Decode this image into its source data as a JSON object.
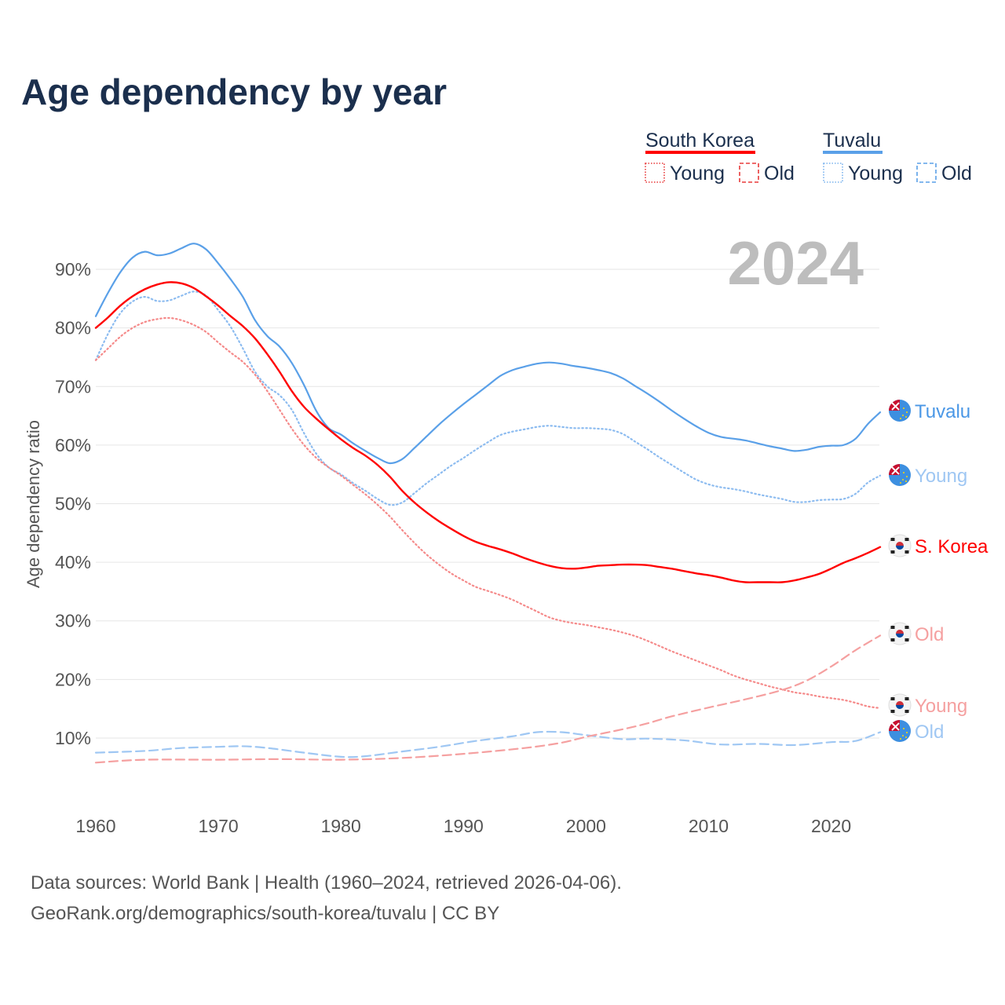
{
  "title": "Age dependency by year",
  "year_badge": "2024",
  "legend": {
    "groups": [
      {
        "name": "South Korea",
        "color": "#ff0000",
        "young": "Young",
        "old": "Old",
        "young_color": "#e83a3a",
        "old_color": "#e83a3a"
      },
      {
        "name": "Tuvalu",
        "color": "#5aa0e8",
        "young": "Young",
        "old": "Old",
        "young_color": "#7ab3ee",
        "old_color": "#5aa0e8"
      }
    ]
  },
  "end_labels": [
    {
      "text": "Tuvalu",
      "color": "#4a97e6",
      "flag": "tuvalu-flag",
      "value": 65.6
    },
    {
      "text": "Young",
      "color": "#9fc7f3",
      "flag": "tuvalu-flag",
      "value": 54.8
    },
    {
      "text": "S. Korea",
      "color": "#ff0000",
      "flag": "south-korea-flag",
      "value": 42.6
    },
    {
      "text": "Old",
      "color": "#f5a0a0",
      "flag": "south-korea-flag",
      "value": 27.5
    },
    {
      "text": "Young",
      "color": "#f5a0a0",
      "flag": "south-korea-flag",
      "value": 15.1
    },
    {
      "text": "Old",
      "color": "#9fc7f3",
      "flag": "tuvalu-flag",
      "value": 11
    }
  ],
  "source": {
    "line1": "Data sources: World Bank | Health (1960–2024, retrieved 2026-04-06).",
    "line2": "GeoRank.org/demographics/south-korea/tuvalu | CC BY"
  },
  "chart_data": {
    "type": "line",
    "title": "Age dependency by year",
    "xlabel": "",
    "ylabel": "Age dependency ratio",
    "xlim": [
      1960,
      2024
    ],
    "ylim": [
      0,
      100
    ],
    "x_ticks": [
      1960,
      1970,
      1980,
      1990,
      2000,
      2010,
      2020
    ],
    "x_tick_labels": [
      "1960",
      "1970",
      "1980",
      "1990",
      "2000",
      "2010",
      "2020"
    ],
    "y_ticks": [
      10,
      20,
      30,
      40,
      50,
      60,
      70,
      80,
      90
    ],
    "y_tick_labels": [
      "10%",
      "20%",
      "30%",
      "40%",
      "50%",
      "60%",
      "70%",
      "80%",
      "90%"
    ],
    "grid": true,
    "legend_position": "top-right",
    "series": [
      {
        "name": "Tuvalu",
        "color": "#5aa0e8",
        "dash": "solid",
        "width": 2.2,
        "x": [
          1960,
          1961,
          1962,
          1963,
          1964,
          1965,
          1966,
          1967,
          1968,
          1969,
          1970,
          1971,
          1972,
          1973,
          1974,
          1975,
          1976,
          1977,
          1978,
          1979,
          1980,
          1981,
          1982,
          1983,
          1984,
          1985,
          1986,
          1987,
          1988,
          1989,
          1990,
          1991,
          1992,
          1993,
          1994,
          1995,
          1996,
          1997,
          1998,
          1999,
          2000,
          2001,
          2002,
          2003,
          2004,
          2005,
          2006,
          2007,
          2008,
          2009,
          2010,
          2011,
          2012,
          2013,
          2014,
          2015,
          2016,
          2017,
          2018,
          2019,
          2020,
          2021,
          2022,
          2023,
          2024
        ],
        "y": [
          82,
          86,
          89.5,
          92,
          93,
          92.4,
          92.7,
          93.6,
          94.4,
          93.4,
          91,
          88.3,
          85.3,
          81.3,
          78.6,
          76.8,
          74,
          70.2,
          65.8,
          62.9,
          61.8,
          60.3,
          59,
          57.8,
          56.9,
          57.6,
          59.5,
          61.5,
          63.5,
          65.3,
          67,
          68.6,
          70.2,
          71.8,
          72.8,
          73.4,
          73.9,
          74.1,
          73.9,
          73.5,
          73.2,
          72.8,
          72.3,
          71.4,
          70.1,
          68.8,
          67.4,
          65.9,
          64.5,
          63.2,
          62.1,
          61.4,
          61.1,
          60.8,
          60.3,
          59.8,
          59.4,
          59,
          59.2,
          59.7,
          59.9,
          60,
          61.1,
          63.6,
          65.6
        ]
      },
      {
        "name": "Tuvalu Young",
        "color": "#8dbcf0",
        "dash": "dotted",
        "width": 2.2,
        "x": [
          1960,
          1961,
          1962,
          1963,
          1964,
          1965,
          1966,
          1967,
          1968,
          1969,
          1970,
          1971,
          1972,
          1973,
          1974,
          1975,
          1976,
          1977,
          1978,
          1979,
          1980,
          1981,
          1982,
          1983,
          1984,
          1985,
          1986,
          1987,
          1988,
          1989,
          1990,
          1991,
          1992,
          1993,
          1994,
          1995,
          1996,
          1997,
          1998,
          1999,
          2000,
          2001,
          2002,
          2003,
          2004,
          2005,
          2006,
          2007,
          2008,
          2009,
          2010,
          2011,
          2012,
          2013,
          2014,
          2015,
          2016,
          2017,
          2018,
          2019,
          2020,
          2021,
          2022,
          2023,
          2024
        ],
        "y": [
          74.5,
          79,
          82.5,
          84.5,
          85.3,
          84.6,
          84.7,
          85.5,
          86.2,
          85.5,
          83,
          80.2,
          76.5,
          72.5,
          70,
          68.5,
          66,
          62,
          58.5,
          56.2,
          55,
          53.5,
          52.2,
          50.8,
          49.8,
          50.2,
          51.8,
          53.5,
          55,
          56.5,
          57.8,
          59.2,
          60.5,
          61.7,
          62.3,
          62.7,
          63.1,
          63.3,
          63.1,
          62.9,
          62.9,
          62.8,
          62.6,
          61.9,
          60.6,
          59.3,
          57.9,
          56.6,
          55.3,
          54.1,
          53.3,
          52.8,
          52.5,
          52.1,
          51.6,
          51.2,
          50.8,
          50.3,
          50.3,
          50.6,
          50.7,
          50.8,
          51.7,
          53.6,
          54.8
        ]
      },
      {
        "name": "Tuvalu Old",
        "color": "#9fc7f3",
        "dash": "dashed",
        "width": 2.2,
        "x": [
          1960,
          1964,
          1967,
          1970,
          1972,
          1974,
          1977,
          1980,
          1982,
          1985,
          1988,
          1991,
          1994,
          1996,
          1998,
          2000,
          2003,
          2005,
          2008,
          2011,
          2014,
          2017,
          2020,
          2022,
          2024
        ],
        "y": [
          7.5,
          7.8,
          8.3,
          8.5,
          8.6,
          8.3,
          7.5,
          6.8,
          6.9,
          7.7,
          8.5,
          9.5,
          10.3,
          11,
          11,
          10.5,
          9.8,
          9.9,
          9.6,
          8.9,
          9,
          8.8,
          9.3,
          9.5,
          11
        ]
      },
      {
        "name": "South Korea",
        "color": "#ff0000",
        "dash": "solid",
        "width": 2.4,
        "x": [
          1960,
          1961,
          1962,
          1963,
          1964,
          1965,
          1966,
          1967,
          1968,
          1969,
          1970,
          1971,
          1972,
          1973,
          1974,
          1975,
          1976,
          1977,
          1978,
          1979,
          1980,
          1981,
          1982,
          1983,
          1984,
          1985,
          1986,
          1987,
          1988,
          1989,
          1990,
          1991,
          1992,
          1993,
          1994,
          1995,
          1996,
          1997,
          1998,
          1999,
          2000,
          2001,
          2002,
          2003,
          2004,
          2005,
          2006,
          2007,
          2008,
          2009,
          2010,
          2011,
          2012,
          2013,
          2014,
          2015,
          2016,
          2017,
          2018,
          2019,
          2020,
          2021,
          2022,
          2023,
          2024
        ],
        "y": [
          80,
          81.8,
          83.8,
          85.4,
          86.6,
          87.4,
          87.8,
          87.6,
          86.8,
          85.4,
          83.8,
          82,
          80.3,
          78.2,
          75.5,
          72.5,
          69.2,
          66.5,
          64.5,
          62.7,
          61,
          59.5,
          58.2,
          56.6,
          54.6,
          52.2,
          50.2,
          48.5,
          47,
          45.7,
          44.5,
          43.5,
          42.8,
          42.2,
          41.5,
          40.7,
          40,
          39.4,
          39,
          38.9,
          39.1,
          39.4,
          39.5,
          39.6,
          39.6,
          39.5,
          39.2,
          38.9,
          38.5,
          38.1,
          37.8,
          37.4,
          36.9,
          36.6,
          36.6,
          36.6,
          36.6,
          36.9,
          37.4,
          38,
          38.9,
          39.9,
          40.7,
          41.6,
          42.6
        ]
      },
      {
        "name": "South Korea Young",
        "color": "#f58a8a",
        "dash": "dotted",
        "width": 2.2,
        "x": [
          1960,
          1961,
          1962,
          1963,
          1964,
          1965,
          1966,
          1967,
          1968,
          1969,
          1970,
          1971,
          1972,
          1973,
          1974,
          1975,
          1976,
          1977,
          1978,
          1979,
          1980,
          1981,
          1982,
          1983,
          1984,
          1985,
          1986,
          1987,
          1988,
          1989,
          1990,
          1991,
          1992,
          1993,
          1994,
          1995,
          1996,
          1997,
          1998,
          1999,
          2000,
          2001,
          2002,
          2003,
          2004,
          2005,
          2006,
          2007,
          2008,
          2009,
          2010,
          2011,
          2012,
          2013,
          2014,
          2015,
          2016,
          2017,
          2018,
          2019,
          2020,
          2021,
          2022,
          2023,
          2024
        ],
        "y": [
          74.5,
          76.5,
          78.5,
          80,
          81,
          81.5,
          81.7,
          81.3,
          80.5,
          79.3,
          77.5,
          75.8,
          74.2,
          72,
          69.2,
          66,
          62.8,
          60,
          57.8,
          56.2,
          54.8,
          53.2,
          51.6,
          49.8,
          47.8,
          45.5,
          43.3,
          41.3,
          39.6,
          38.1,
          36.9,
          35.8,
          35.1,
          34.4,
          33.6,
          32.6,
          31.6,
          30.6,
          30,
          29.6,
          29.3,
          28.9,
          28.5,
          28,
          27.4,
          26.6,
          25.7,
          24.8,
          24,
          23.2,
          22.4,
          21.6,
          20.7,
          20,
          19.4,
          18.8,
          18.3,
          17.8,
          17.5,
          17.1,
          16.8,
          16.5,
          16,
          15.4,
          15.1
        ]
      },
      {
        "name": "South Korea Old",
        "color": "#f5a0a0",
        "dash": "dashed",
        "width": 2.2,
        "x": [
          1960,
          1964,
          1970,
          1975,
          1980,
          1985,
          1990,
          1995,
          1998,
          2000,
          2003,
          2005,
          2007,
          2010,
          2013,
          2016,
          2018,
          2020,
          2022,
          2024
        ],
        "y": [
          5.8,
          6.3,
          6.3,
          6.4,
          6.3,
          6.6,
          7.3,
          8.3,
          9.2,
          10.2,
          11.5,
          12.5,
          13.7,
          15.2,
          16.6,
          18.2,
          19.8,
          22.2,
          25,
          27.5
        ]
      }
    ]
  }
}
